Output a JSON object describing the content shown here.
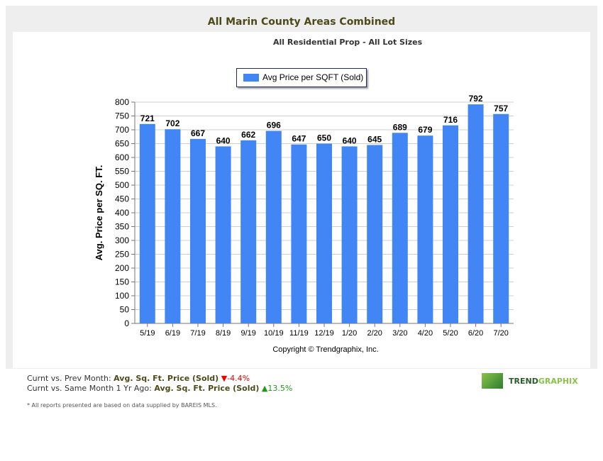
{
  "title": "All Marin County Areas Combined",
  "subtitle": "All Residential Prop - All Lot Sizes",
  "copyright": "Copyright © Trendgraphix, Inc.",
  "chart_data": {
    "type": "bar",
    "categories": [
      "5/19",
      "6/19",
      "7/19",
      "8/19",
      "9/19",
      "10/19",
      "11/19",
      "12/19",
      "1/20",
      "2/20",
      "3/20",
      "4/20",
      "5/20",
      "6/20",
      "7/20"
    ],
    "series": [
      {
        "name": "Avg Price per SQFT (Sold)",
        "values": [
          721,
          702,
          667,
          640,
          662,
          696,
          647,
          650,
          640,
          645,
          689,
          679,
          716,
          792,
          757
        ],
        "color": "#4285f4"
      }
    ],
    "ylabel": "Avg. Price per SQ. FT.",
    "ylim": [
      0,
      800
    ],
    "yticks": [
      0,
      50,
      100,
      150,
      200,
      250,
      300,
      350,
      400,
      450,
      500,
      550,
      600,
      650,
      700,
      750,
      800
    ],
    "grid": true,
    "legend": "top"
  },
  "footer": {
    "line1_prefix": "Curnt vs. Prev Month: ",
    "line1_metric": "Avg. Sq. Ft. Price (Sold)",
    "line1_change": "-4.4%",
    "line1_dir": "down",
    "line2_prefix": "Curnt vs. Same Month 1 Yr Ago: ",
    "line2_metric": "Avg. Sq. Ft. Price (Sold)",
    "line2_change": "13.5%",
    "line2_dir": "up",
    "note": "* All reports presented are based on data supplied by BAREIS MLS."
  },
  "logo": {
    "text1": "TREND",
    "text2": "GRAPHIX"
  }
}
